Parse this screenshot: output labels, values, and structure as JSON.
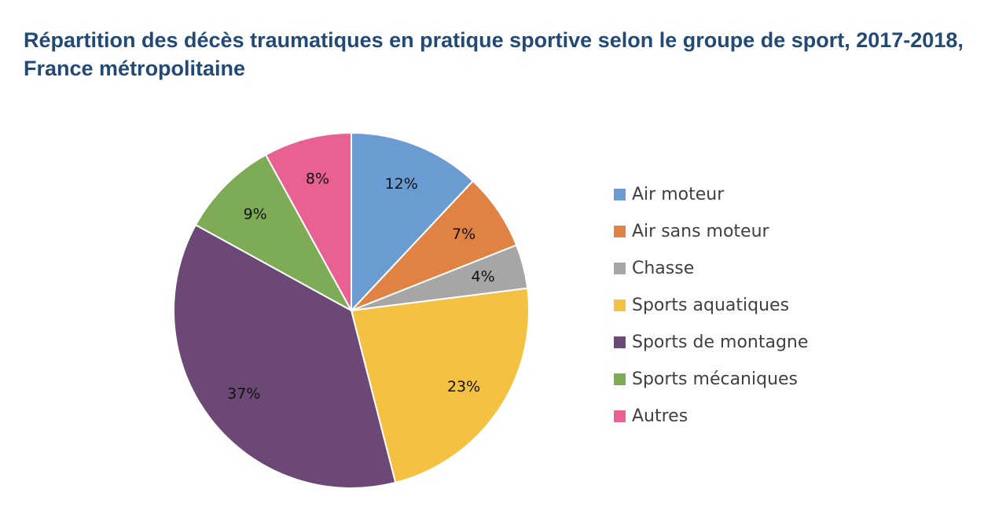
{
  "chart_data": {
    "type": "pie",
    "title": "Répartition des décès traumatiques en pratique sportive selon le groupe de sport, 2017-2018, France métropolitaine",
    "slices": [
      {
        "label": "Air moteur",
        "value": 12,
        "value_label": "12%",
        "color": "#6a9bd1"
      },
      {
        "label": "Air sans moteur",
        "value": 7,
        "value_label": "7%",
        "color": "#df8243"
      },
      {
        "label": "Chasse",
        "value": 4,
        "value_label": "4%",
        "color": "#a6a6a6"
      },
      {
        "label": "Sports aquatiques",
        "value": 23,
        "value_label": "23%",
        "color": "#f4c143"
      },
      {
        "label": "Sports de montagne",
        "value": 37,
        "value_label": "37%",
        "color": "#6b4876"
      },
      {
        "label": "Sports mécaniques",
        "value": 9,
        "value_label": "9%",
        "color": "#7eab55"
      },
      {
        "label": "Autres",
        "value": 8,
        "value_label": "8%",
        "color": "#e86192"
      }
    ],
    "legend_position": "right"
  }
}
